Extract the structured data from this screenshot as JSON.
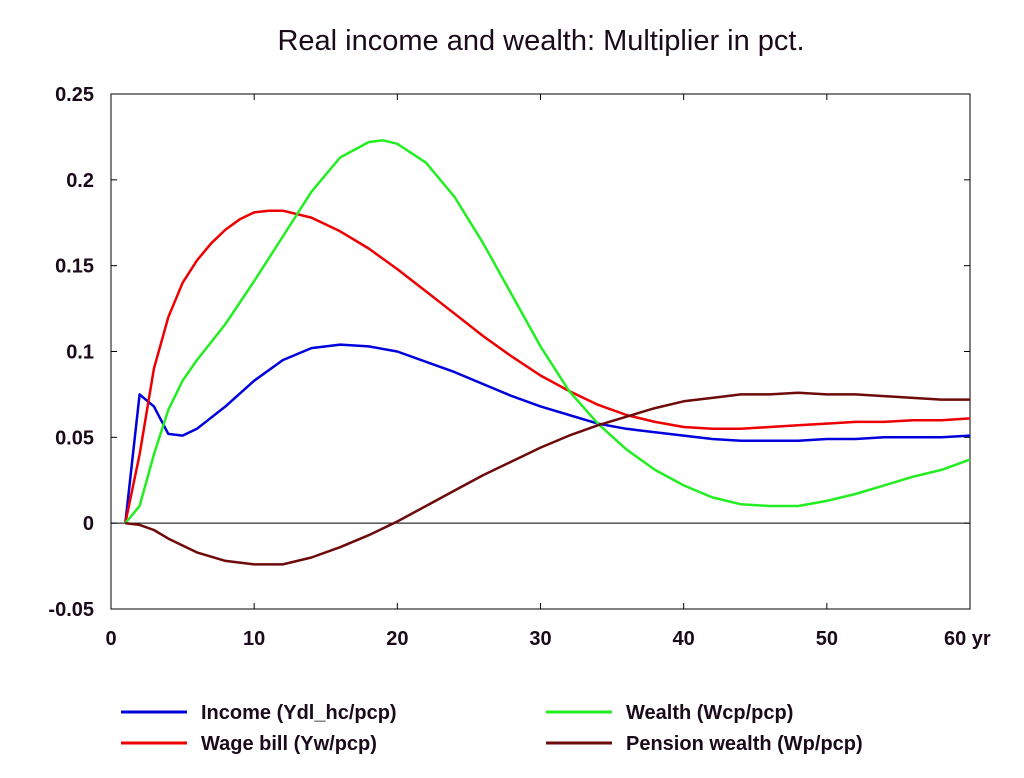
{
  "chart_data": {
    "type": "line",
    "title": "Real income and wealth: Multiplier in pct.",
    "xlabel": "",
    "ylabel": "",
    "xlim": [
      0,
      60
    ],
    "ylim": [
      -0.05,
      0.25
    ],
    "x_ticks": [
      {
        "value": 0,
        "label": "0"
      },
      {
        "value": 10,
        "label": "10"
      },
      {
        "value": 20,
        "label": "20"
      },
      {
        "value": 30,
        "label": "30"
      },
      {
        "value": 40,
        "label": "40"
      },
      {
        "value": 50,
        "label": "50"
      },
      {
        "value": 60,
        "label": "60 yr"
      }
    ],
    "y_ticks": [
      {
        "value": -0.05,
        "label": "-0.05"
      },
      {
        "value": 0,
        "label": "0"
      },
      {
        "value": 0.05,
        "label": "0.05"
      },
      {
        "value": 0.1,
        "label": "0.1"
      },
      {
        "value": 0.15,
        "label": "0.15"
      },
      {
        "value": 0.2,
        "label": "0.2"
      },
      {
        "value": 0.25,
        "label": "0.25"
      }
    ],
    "zero_line": true,
    "grid": false,
    "legend_position": "bottom",
    "series": [
      {
        "name": "Income (Ydl_hc/pcp)",
        "color": "#0000dd",
        "points": [
          [
            1,
            0
          ],
          [
            2,
            0.075
          ],
          [
            3,
            0.068
          ],
          [
            4,
            0.052
          ],
          [
            5,
            0.051
          ],
          [
            6,
            0.055
          ],
          [
            8,
            0.068
          ],
          [
            10,
            0.083
          ],
          [
            12,
            0.095
          ],
          [
            14,
            0.102
          ],
          [
            16,
            0.104
          ],
          [
            18,
            0.103
          ],
          [
            20,
            0.1
          ],
          [
            22,
            0.094
          ],
          [
            24,
            0.088
          ],
          [
            26,
            0.081
          ],
          [
            28,
            0.074
          ],
          [
            30,
            0.068
          ],
          [
            32,
            0.063
          ],
          [
            34,
            0.058
          ],
          [
            36,
            0.055
          ],
          [
            38,
            0.053
          ],
          [
            40,
            0.051
          ],
          [
            42,
            0.049
          ],
          [
            44,
            0.048
          ],
          [
            46,
            0.048
          ],
          [
            48,
            0.048
          ],
          [
            50,
            0.049
          ],
          [
            52,
            0.049
          ],
          [
            54,
            0.05
          ],
          [
            56,
            0.05
          ],
          [
            58,
            0.05
          ],
          [
            60,
            0.051
          ]
        ]
      },
      {
        "name": "Wage bill (Yw/pcp)",
        "color": "#ee0000",
        "points": [
          [
            1,
            0
          ],
          [
            2,
            0.04
          ],
          [
            3,
            0.09
          ],
          [
            4,
            0.12
          ],
          [
            5,
            0.14
          ],
          [
            6,
            0.153
          ],
          [
            7,
            0.163
          ],
          [
            8,
            0.171
          ],
          [
            9,
            0.177
          ],
          [
            10,
            0.181
          ],
          [
            11,
            0.182
          ],
          [
            12,
            0.182
          ],
          [
            14,
            0.178
          ],
          [
            16,
            0.17
          ],
          [
            18,
            0.16
          ],
          [
            20,
            0.148
          ],
          [
            22,
            0.135
          ],
          [
            24,
            0.122
          ],
          [
            26,
            0.109
          ],
          [
            28,
            0.097
          ],
          [
            30,
            0.086
          ],
          [
            32,
            0.077
          ],
          [
            34,
            0.069
          ],
          [
            36,
            0.063
          ],
          [
            38,
            0.059
          ],
          [
            40,
            0.056
          ],
          [
            42,
            0.055
          ],
          [
            44,
            0.055
          ],
          [
            46,
            0.056
          ],
          [
            48,
            0.057
          ],
          [
            50,
            0.058
          ],
          [
            52,
            0.059
          ],
          [
            54,
            0.059
          ],
          [
            56,
            0.06
          ],
          [
            58,
            0.06
          ],
          [
            60,
            0.061
          ]
        ]
      },
      {
        "name": "Wealth (Wcp/pcp)",
        "color": "#22ee22",
        "points": [
          [
            1,
            0
          ],
          [
            2,
            0.01
          ],
          [
            3,
            0.04
          ],
          [
            4,
            0.066
          ],
          [
            5,
            0.083
          ],
          [
            6,
            0.095
          ],
          [
            8,
            0.116
          ],
          [
            10,
            0.141
          ],
          [
            12,
            0.167
          ],
          [
            14,
            0.193
          ],
          [
            16,
            0.213
          ],
          [
            18,
            0.222
          ],
          [
            19,
            0.223
          ],
          [
            20,
            0.221
          ],
          [
            22,
            0.21
          ],
          [
            24,
            0.19
          ],
          [
            26,
            0.163
          ],
          [
            28,
            0.133
          ],
          [
            30,
            0.103
          ],
          [
            32,
            0.077
          ],
          [
            34,
            0.058
          ],
          [
            36,
            0.043
          ],
          [
            38,
            0.031
          ],
          [
            40,
            0.022
          ],
          [
            42,
            0.015
          ],
          [
            44,
            0.011
          ],
          [
            46,
            0.01
          ],
          [
            48,
            0.01
          ],
          [
            50,
            0.013
          ],
          [
            52,
            0.017
          ],
          [
            54,
            0.022
          ],
          [
            56,
            0.027
          ],
          [
            58,
            0.031
          ],
          [
            60,
            0.037
          ]
        ]
      },
      {
        "name": "Pension wealth (Wp/pcp)",
        "color": "#6e0a0a",
        "points": [
          [
            1,
            0
          ],
          [
            2,
            -0.001
          ],
          [
            3,
            -0.004
          ],
          [
            4,
            -0.009
          ],
          [
            6,
            -0.017
          ],
          [
            8,
            -0.022
          ],
          [
            10,
            -0.024
          ],
          [
            12,
            -0.024
          ],
          [
            14,
            -0.02
          ],
          [
            16,
            -0.014
          ],
          [
            18,
            -0.007
          ],
          [
            20,
            0.001
          ],
          [
            22,
            0.01
          ],
          [
            24,
            0.019
          ],
          [
            26,
            0.028
          ],
          [
            28,
            0.036
          ],
          [
            30,
            0.044
          ],
          [
            32,
            0.051
          ],
          [
            34,
            0.057
          ],
          [
            36,
            0.062
          ],
          [
            38,
            0.067
          ],
          [
            40,
            0.071
          ],
          [
            42,
            0.073
          ],
          [
            44,
            0.075
          ],
          [
            46,
            0.075
          ],
          [
            48,
            0.076
          ],
          [
            50,
            0.075
          ],
          [
            52,
            0.075
          ],
          [
            54,
            0.074
          ],
          [
            56,
            0.073
          ],
          [
            58,
            0.072
          ],
          [
            60,
            0.072
          ]
        ]
      }
    ]
  }
}
